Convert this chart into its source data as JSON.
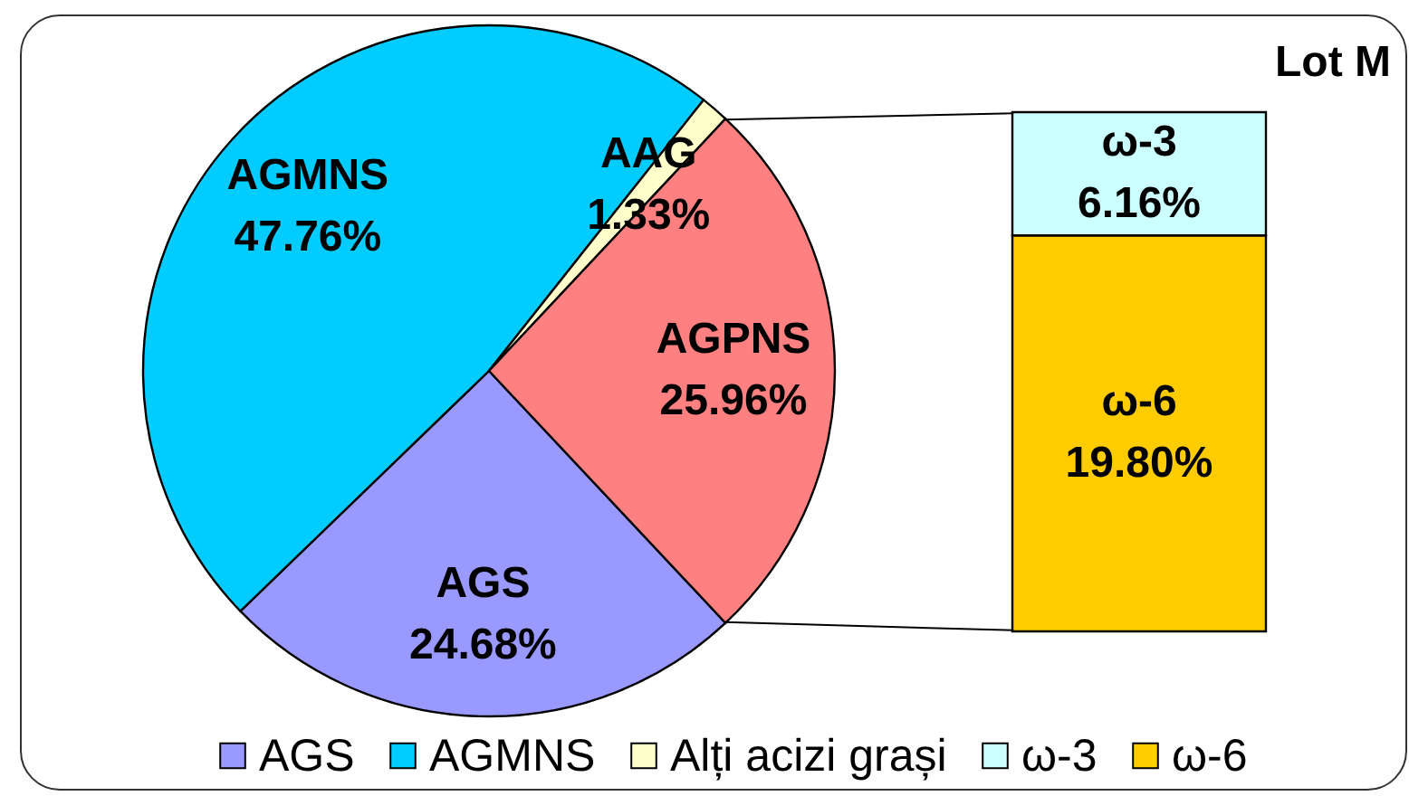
{
  "chart_data": [
    {
      "type": "pie",
      "title": "Lot M",
      "categories": [
        "AGS",
        "AGMNS",
        "Alți acizi grași",
        null
      ],
      "values": [
        24.68,
        47.76,
        1.33,
        25.96
      ],
      "colors": [
        "#9999ff",
        "#00ccff",
        "#ffffcc",
        "#ff8080"
      ],
      "value_labels": [
        "AGS\n24.68%",
        "AGMNS\n47.76%",
        "AAG\n1.33%",
        "AGPNS\n25.96%"
      ],
      "legend": "bottom"
    },
    {
      "type": "bar",
      "stacked": true,
      "categories": [
        null
      ],
      "series": [
        {
          "name": "ω-6",
          "color": "#ffcc00",
          "values": [
            19.8
          ],
          "value_labels": [
            "ω-6\n19.80%"
          ]
        },
        {
          "name": "ω-3",
          "color": "#ccffff",
          "values": [
            6.16
          ],
          "value_labels": [
            "ω-3\n6.16%"
          ]
        }
      ],
      "legend": "bottom"
    }
  ]
}
